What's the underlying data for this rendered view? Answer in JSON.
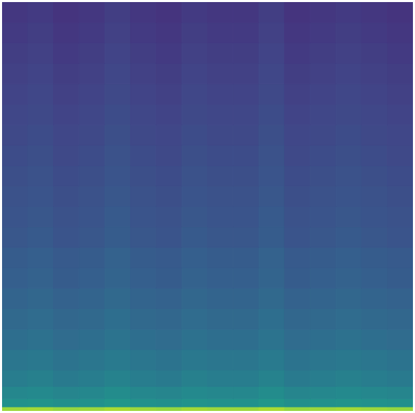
{
  "chart_data": {
    "type": "heatmap",
    "tick_labels": false,
    "grid": false,
    "zlim": [
      0,
      1
    ],
    "xbins": [
      0,
      1,
      2,
      3,
      4,
      5,
      6,
      7,
      8,
      9,
      10,
      11,
      12,
      13,
      14,
      15,
      16
    ],
    "ybins": [
      0,
      1,
      3,
      6,
      10,
      15,
      20,
      25,
      30,
      35,
      40,
      45,
      50,
      55,
      60,
      65,
      70,
      75,
      80,
      85,
      90,
      95,
      100
    ],
    "cells": [
      [
        0.85,
        0.86,
        0.84,
        0.85,
        0.87,
        0.85,
        0.84,
        0.86,
        0.85,
        0.85,
        0.87,
        0.84,
        0.85,
        0.86,
        0.85,
        0.84
      ],
      [
        0.5,
        0.51,
        0.49,
        0.5,
        0.52,
        0.5,
        0.49,
        0.51,
        0.5,
        0.5,
        0.52,
        0.49,
        0.5,
        0.51,
        0.5,
        0.49
      ],
      [
        0.46,
        0.47,
        0.45,
        0.46,
        0.48,
        0.46,
        0.45,
        0.47,
        0.46,
        0.46,
        0.48,
        0.45,
        0.46,
        0.47,
        0.46,
        0.45
      ],
      [
        0.42,
        0.43,
        0.41,
        0.42,
        0.44,
        0.42,
        0.41,
        0.43,
        0.42,
        0.42,
        0.44,
        0.41,
        0.42,
        0.43,
        0.42,
        0.41
      ],
      [
        0.39,
        0.4,
        0.38,
        0.39,
        0.41,
        0.39,
        0.38,
        0.4,
        0.39,
        0.39,
        0.41,
        0.38,
        0.39,
        0.4,
        0.39,
        0.38
      ],
      [
        0.36,
        0.37,
        0.35,
        0.36,
        0.38,
        0.36,
        0.35,
        0.37,
        0.36,
        0.36,
        0.38,
        0.35,
        0.36,
        0.37,
        0.36,
        0.35
      ],
      [
        0.34,
        0.35,
        0.33,
        0.34,
        0.36,
        0.34,
        0.33,
        0.35,
        0.34,
        0.34,
        0.36,
        0.33,
        0.34,
        0.35,
        0.34,
        0.33
      ],
      [
        0.32,
        0.33,
        0.31,
        0.32,
        0.34,
        0.32,
        0.31,
        0.33,
        0.32,
        0.32,
        0.34,
        0.31,
        0.32,
        0.33,
        0.32,
        0.31
      ],
      [
        0.3,
        0.31,
        0.29,
        0.3,
        0.32,
        0.3,
        0.29,
        0.31,
        0.3,
        0.3,
        0.32,
        0.29,
        0.3,
        0.31,
        0.3,
        0.29
      ],
      [
        0.29,
        0.3,
        0.28,
        0.29,
        0.31,
        0.29,
        0.28,
        0.3,
        0.29,
        0.29,
        0.31,
        0.28,
        0.29,
        0.3,
        0.29,
        0.28
      ],
      [
        0.27,
        0.28,
        0.26,
        0.27,
        0.29,
        0.27,
        0.26,
        0.28,
        0.27,
        0.27,
        0.29,
        0.26,
        0.27,
        0.28,
        0.27,
        0.26
      ],
      [
        0.26,
        0.27,
        0.25,
        0.26,
        0.28,
        0.26,
        0.25,
        0.27,
        0.26,
        0.26,
        0.28,
        0.25,
        0.26,
        0.27,
        0.26,
        0.25
      ],
      [
        0.25,
        0.26,
        0.24,
        0.25,
        0.27,
        0.25,
        0.24,
        0.26,
        0.25,
        0.25,
        0.27,
        0.24,
        0.25,
        0.26,
        0.25,
        0.24
      ],
      [
        0.24,
        0.25,
        0.23,
        0.24,
        0.26,
        0.24,
        0.23,
        0.25,
        0.24,
        0.24,
        0.26,
        0.23,
        0.24,
        0.25,
        0.24,
        0.23
      ],
      [
        0.23,
        0.24,
        0.22,
        0.23,
        0.25,
        0.23,
        0.22,
        0.24,
        0.23,
        0.23,
        0.25,
        0.22,
        0.23,
        0.24,
        0.23,
        0.22
      ],
      [
        0.22,
        0.23,
        0.21,
        0.22,
        0.24,
        0.22,
        0.21,
        0.23,
        0.22,
        0.22,
        0.24,
        0.21,
        0.22,
        0.23,
        0.22,
        0.21
      ],
      [
        0.21,
        0.22,
        0.2,
        0.21,
        0.23,
        0.21,
        0.2,
        0.22,
        0.21,
        0.21,
        0.23,
        0.2,
        0.21,
        0.22,
        0.21,
        0.2
      ],
      [
        0.2,
        0.21,
        0.19,
        0.2,
        0.22,
        0.2,
        0.19,
        0.21,
        0.2,
        0.2,
        0.22,
        0.19,
        0.2,
        0.21,
        0.2,
        0.19
      ],
      [
        0.19,
        0.2,
        0.18,
        0.19,
        0.21,
        0.19,
        0.18,
        0.2,
        0.19,
        0.19,
        0.21,
        0.18,
        0.19,
        0.2,
        0.19,
        0.18
      ],
      [
        0.18,
        0.19,
        0.17,
        0.18,
        0.2,
        0.18,
        0.17,
        0.19,
        0.18,
        0.18,
        0.2,
        0.17,
        0.18,
        0.19,
        0.18,
        0.17
      ],
      [
        0.17,
        0.18,
        0.16,
        0.17,
        0.19,
        0.17,
        0.16,
        0.18,
        0.17,
        0.17,
        0.19,
        0.16,
        0.17,
        0.18,
        0.17,
        0.16
      ],
      [
        0.16,
        0.17,
        0.15,
        0.16,
        0.18,
        0.16,
        0.15,
        0.17,
        0.16,
        0.16,
        0.18,
        0.15,
        0.16,
        0.17,
        0.16,
        0.15
      ]
    ]
  }
}
